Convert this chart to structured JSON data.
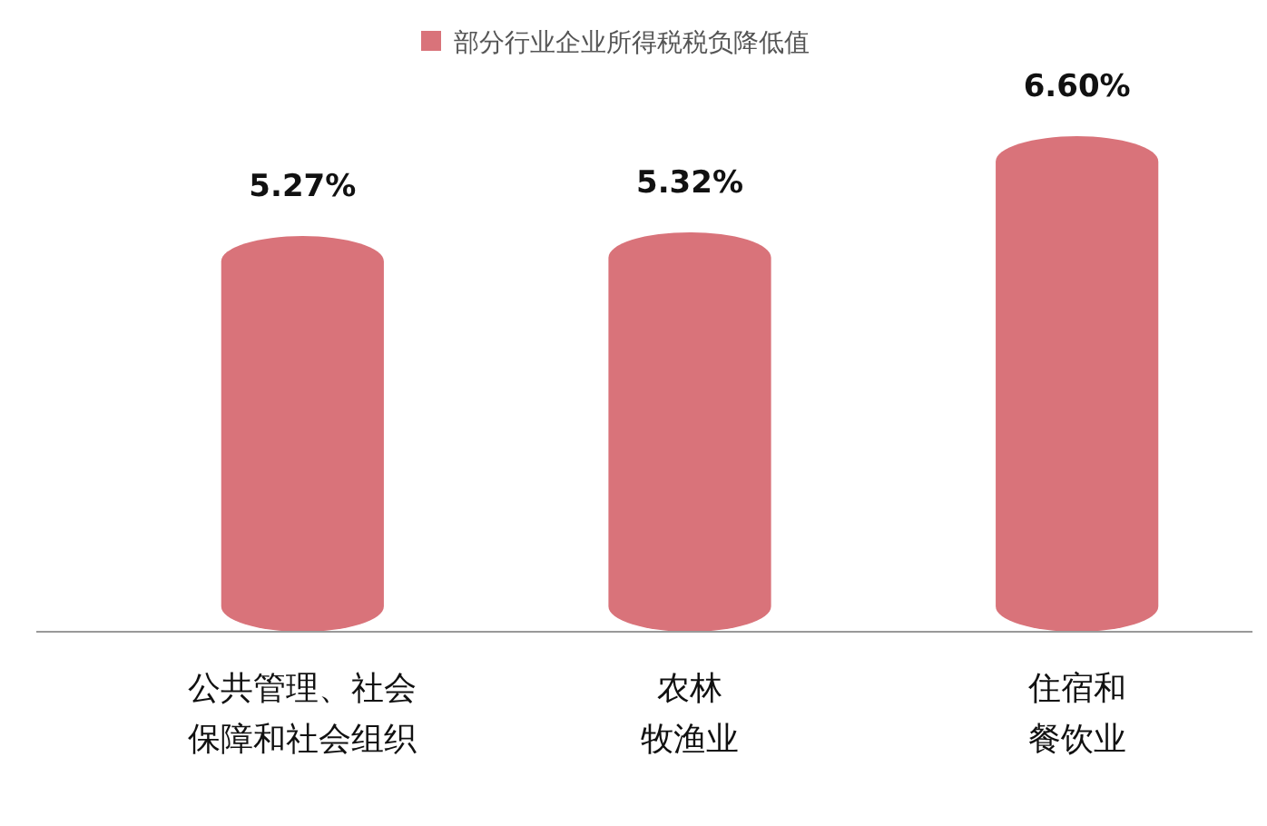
{
  "chart_data": {
    "type": "bar",
    "categories": [
      "公共管理、社会保障和社会组织",
      "农林牧渔业",
      "住宿和餐饮业"
    ],
    "series": [
      {
        "name": "部分行业企业所得税税负降低值",
        "color": "#d9737a",
        "values": [
          5.27,
          5.32,
          6.6
        ],
        "value_labels": [
          "5.27%",
          "5.32%",
          "6.60%"
        ]
      }
    ],
    "legend": "top"
  }
}
